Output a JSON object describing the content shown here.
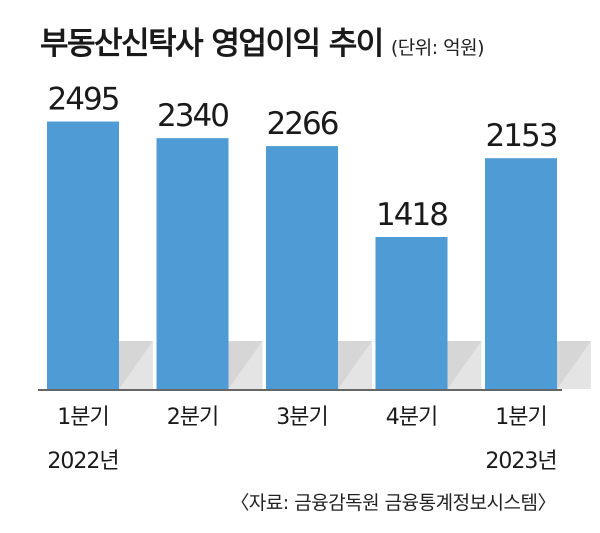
{
  "title": "부동산신탁사 영업이익 추이",
  "unit": "(단위: 억원)",
  "source": "〈자료: 금융감독원 금융통계정보시스템〉",
  "colors": {
    "bar": "#4e9bd5",
    "shadow": "#e4e4e4",
    "axis": "#333333"
  },
  "chart_data": {
    "type": "bar",
    "title": "부동산신탁사 영업이익 추이",
    "categories": [
      {
        "line1": "1분기",
        "line2": "2022년"
      },
      {
        "line1": "2분기",
        "line2": ""
      },
      {
        "line1": "3분기",
        "line2": ""
      },
      {
        "line1": "4분기",
        "line2": ""
      },
      {
        "line1": "1분기",
        "line2": "2023년"
      }
    ],
    "values": [
      2495,
      2340,
      2266,
      1418,
      2153
    ],
    "value_labels": [
      "2495",
      "2340",
      "2266",
      "1418",
      "2153"
    ],
    "ylim": [
      0,
      2500
    ],
    "grid": false,
    "legend": "none"
  }
}
